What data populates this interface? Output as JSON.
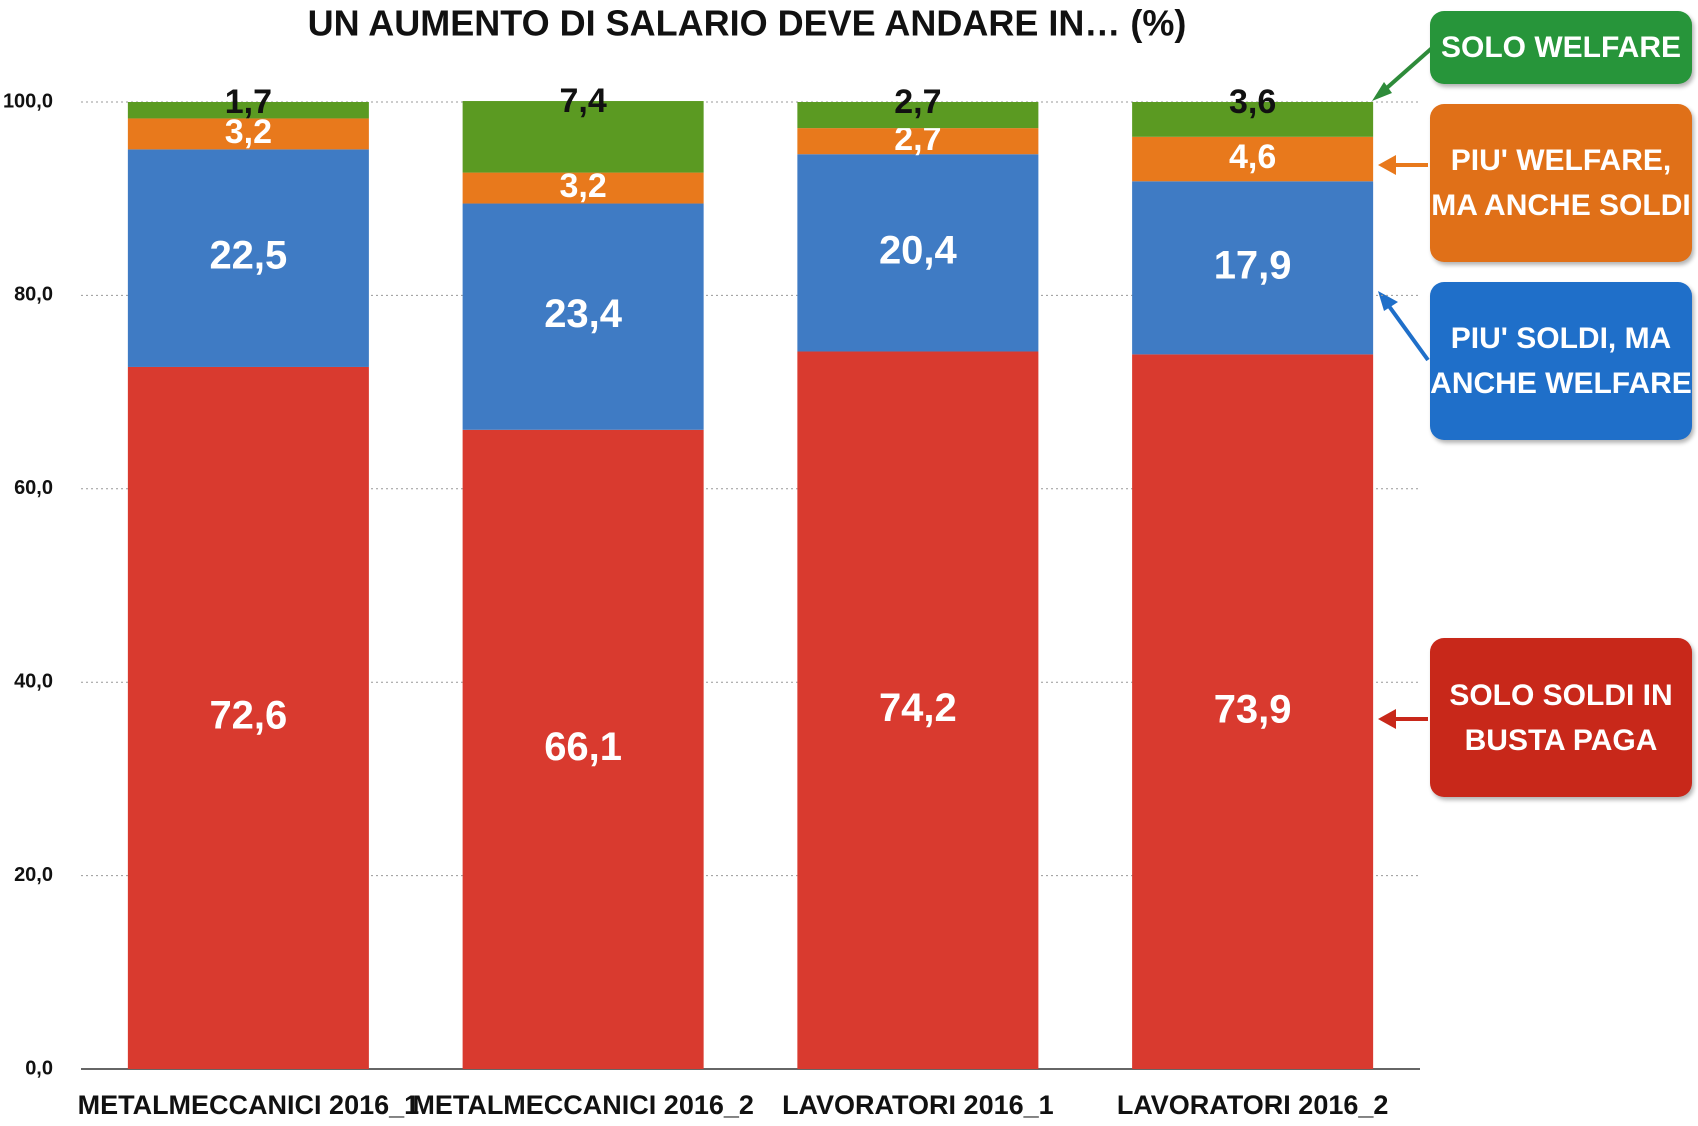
{
  "chart_data": {
    "type": "stacked_bar",
    "title": "UN AUMENTO DI SALARIO DEVE ANDARE IN… (%)",
    "categories": [
      "METALMECCANICI 2016_1",
      "METALMECCANICI 2016_2",
      "LAVORATORI 2016_1",
      "LAVORATORI 2016_2"
    ],
    "series": [
      {
        "name": "SOLO SOLDI IN BUSTA PAGA",
        "color": "#d93a2f",
        "values": [
          72.6,
          66.1,
          74.2,
          73.9
        ],
        "value_labels": [
          "72,6",
          "66,1",
          "74,2",
          "73,9"
        ]
      },
      {
        "name": "PIU' SOLDI, MA ANCHE WELFARE",
        "color": "#3f7bc4",
        "values": [
          22.5,
          23.4,
          20.4,
          17.9
        ],
        "value_labels": [
          "22,5",
          "23,4",
          "20,4",
          "17,9"
        ]
      },
      {
        "name": "PIU' WELFARE, MA ANCHE SOLDI",
        "color": "#e8791c",
        "values": [
          3.2,
          3.2,
          2.7,
          4.6
        ],
        "value_labels": [
          "3,2",
          "3,2",
          "2,7",
          "4,6"
        ]
      },
      {
        "name": "SOLO WELFARE",
        "color": "#5b9a22",
        "values": [
          1.7,
          7.4,
          2.7,
          3.6
        ],
        "value_labels": [
          "1,7",
          "7,4",
          "2,7",
          "3,6"
        ]
      }
    ],
    "ylim": [
      0,
      100
    ],
    "yticks": [
      {
        "value": 0,
        "label": "0,0"
      },
      {
        "value": 20,
        "label": "20,0"
      },
      {
        "value": 40,
        "label": "40,0"
      },
      {
        "value": 60,
        "label": "60,0"
      },
      {
        "value": 80,
        "label": "80,0"
      },
      {
        "value": 100,
        "label": "100,0"
      }
    ],
    "grid": true
  }
}
